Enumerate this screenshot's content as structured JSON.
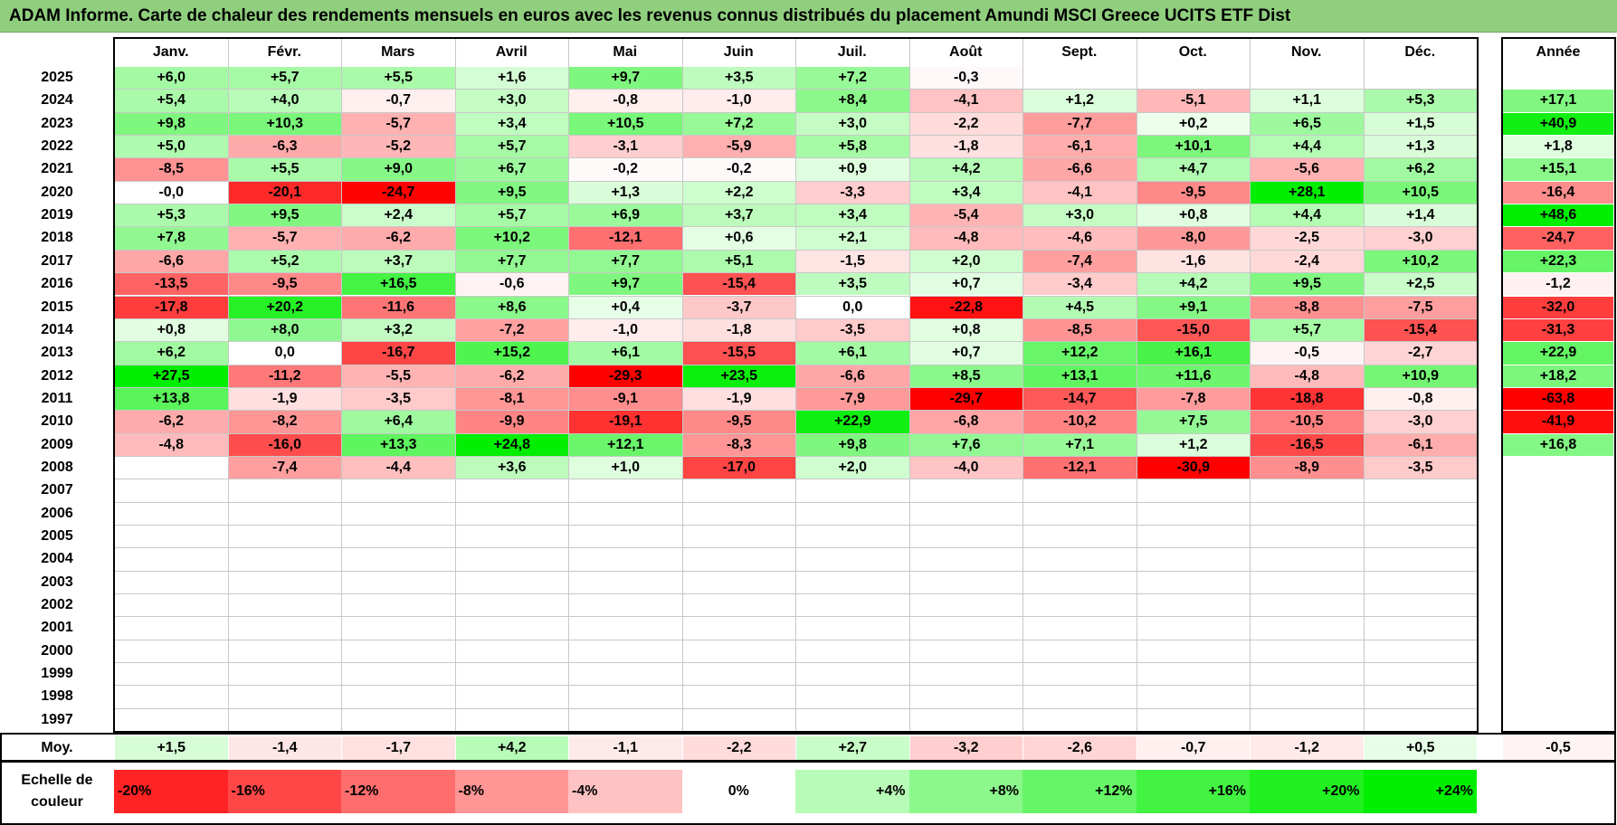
{
  "title": "ADAM Informe. Carte de chaleur des rendements mensuels en euros avec les revenus connus distribués du placement Amundi MSCI Greece UCITS ETF Dist",
  "chart_data": {
    "type": "heatmap",
    "months": [
      "Janv.",
      "Févr.",
      "Mars",
      "Avril",
      "Mai",
      "Juin",
      "Juil.",
      "Août",
      "Sept.",
      "Oct.",
      "Nov.",
      "Déc."
    ],
    "year_header": "Année",
    "rows": [
      {
        "year": "2025",
        "months": [
          "+6,0",
          "+5,7",
          "+5,5",
          "+1,6",
          "+9,7",
          "+3,5",
          "+7,2",
          "-0,3",
          "",
          "",
          "",
          ""
        ],
        "annual": ""
      },
      {
        "year": "2024",
        "months": [
          "+5,4",
          "+4,0",
          "-0,7",
          "+3,0",
          "-0,8",
          "-1,0",
          "+8,4",
          "-4,1",
          "+1,2",
          "-5,1",
          "+1,1",
          "+5,3"
        ],
        "annual": "+17,1"
      },
      {
        "year": "2023",
        "months": [
          "+9,8",
          "+10,3",
          "-5,7",
          "+3,4",
          "+10,5",
          "+7,2",
          "+3,0",
          "-2,2",
          "-7,7",
          "+0,2",
          "+6,5",
          "+1,5"
        ],
        "annual": "+40,9"
      },
      {
        "year": "2022",
        "months": [
          "+5,0",
          "-6,3",
          "-5,2",
          "+5,7",
          "-3,1",
          "-5,9",
          "+5,8",
          "-1,8",
          "-6,1",
          "+10,1",
          "+4,4",
          "+1,3"
        ],
        "annual": "+1,8"
      },
      {
        "year": "2021",
        "months": [
          "-8,5",
          "+5,5",
          "+9,0",
          "+6,7",
          "-0,2",
          "-0,2",
          "+0,9",
          "+4,2",
          "-6,6",
          "+4,7",
          "-5,6",
          "+6,2"
        ],
        "annual": "+15,1"
      },
      {
        "year": "2020",
        "months": [
          "-0,0",
          "-20,1",
          "-24,7",
          "+9,5",
          "+1,3",
          "+2,2",
          "-3,3",
          "+3,4",
          "-4,1",
          "-9,5",
          "+28,1",
          "+10,5"
        ],
        "annual": "-16,4"
      },
      {
        "year": "2019",
        "months": [
          "+5,3",
          "+9,5",
          "+2,4",
          "+5,7",
          "+6,9",
          "+3,7",
          "+3,4",
          "-5,4",
          "+3,0",
          "+0,8",
          "+4,4",
          "+1,4"
        ],
        "annual": "+48,6"
      },
      {
        "year": "2018",
        "months": [
          "+7,8",
          "-5,7",
          "-6,2",
          "+10,2",
          "-12,1",
          "+0,6",
          "+2,1",
          "-4,8",
          "-4,6",
          "-8,0",
          "-2,5",
          "-3,0"
        ],
        "annual": "-24,7"
      },
      {
        "year": "2017",
        "months": [
          "-6,6",
          "+5,2",
          "+3,7",
          "+7,7",
          "+7,7",
          "+5,1",
          "-1,5",
          "+2,0",
          "-7,4",
          "-1,6",
          "-2,4",
          "+10,2"
        ],
        "annual": "+22,3"
      },
      {
        "year": "2016",
        "months": [
          "-13,5",
          "-9,5",
          "+16,5",
          "-0,6",
          "+9,7",
          "-15,4",
          "+3,5",
          "+0,7",
          "-3,4",
          "+4,2",
          "+9,5",
          "+2,5"
        ],
        "annual": "-1,2"
      },
      {
        "year": "2015",
        "months": [
          "-17,8",
          "+20,2",
          "-11,6",
          "+8,6",
          "+0,4",
          "-3,7",
          "0,0",
          "-22,8",
          "+4,5",
          "+9,1",
          "-8,8",
          "-7,5"
        ],
        "annual": "-32,0"
      },
      {
        "year": "2014",
        "months": [
          "+0,8",
          "+8,0",
          "+3,2",
          "-7,2",
          "-1,0",
          "-1,8",
          "-3,5",
          "+0,8",
          "-8,5",
          "-15,0",
          "+5,7",
          "-15,4"
        ],
        "annual": "-31,3"
      },
      {
        "year": "2013",
        "months": [
          "+6,2",
          "0,0",
          "-16,7",
          "+15,2",
          "+6,1",
          "-15,5",
          "+6,1",
          "+0,7",
          "+12,2",
          "+16,1",
          "-0,5",
          "-2,7"
        ],
        "annual": "+22,9"
      },
      {
        "year": "2012",
        "months": [
          "+27,5",
          "-11,2",
          "-5,5",
          "-6,2",
          "-29,3",
          "+23,5",
          "-6,6",
          "+8,5",
          "+13,1",
          "+11,6",
          "-4,8",
          "+10,9"
        ],
        "annual": "+18,2"
      },
      {
        "year": "2011",
        "months": [
          "+13,8",
          "-1,9",
          "-3,5",
          "-8,1",
          "-9,1",
          "-1,9",
          "-7,9",
          "-29,7",
          "-14,7",
          "-7,8",
          "-18,8",
          "-0,8"
        ],
        "annual": "-63,8"
      },
      {
        "year": "2010",
        "months": [
          "-6,2",
          "-8,2",
          "+6,4",
          "-9,9",
          "-19,1",
          "-9,5",
          "+22,9",
          "-6,8",
          "-10,2",
          "+7,5",
          "-10,5",
          "-3,0"
        ],
        "annual": "-41,9"
      },
      {
        "year": "2009",
        "months": [
          "-4,8",
          "-16,0",
          "+13,3",
          "+24,8",
          "+12,1",
          "-8,3",
          "+9,8",
          "+7,6",
          "+7,1",
          "+1,2",
          "-16,5",
          "-6,1"
        ],
        "annual": "+16,8"
      },
      {
        "year": "2008",
        "months": [
          "",
          "-7,4",
          "-4,4",
          "+3,6",
          "+1,0",
          "-17,0",
          "+2,0",
          "-4,0",
          "-12,1",
          "-30,9",
          "-8,9",
          "-3,5"
        ],
        "annual": ""
      },
      {
        "year": "2007",
        "months": [
          "",
          "",
          "",
          "",
          "",
          "",
          "",
          "",
          "",
          "",
          "",
          ""
        ],
        "annual": ""
      },
      {
        "year": "2006",
        "months": [
          "",
          "",
          "",
          "",
          "",
          "",
          "",
          "",
          "",
          "",
          "",
          ""
        ],
        "annual": ""
      },
      {
        "year": "2005",
        "months": [
          "",
          "",
          "",
          "",
          "",
          "",
          "",
          "",
          "",
          "",
          "",
          ""
        ],
        "annual": ""
      },
      {
        "year": "2004",
        "months": [
          "",
          "",
          "",
          "",
          "",
          "",
          "",
          "",
          "",
          "",
          "",
          ""
        ],
        "annual": ""
      },
      {
        "year": "2003",
        "months": [
          "",
          "",
          "",
          "",
          "",
          "",
          "",
          "",
          "",
          "",
          "",
          ""
        ],
        "annual": ""
      },
      {
        "year": "2002",
        "months": [
          "",
          "",
          "",
          "",
          "",
          "",
          "",
          "",
          "",
          "",
          "",
          ""
        ],
        "annual": ""
      },
      {
        "year": "2001",
        "months": [
          "",
          "",
          "",
          "",
          "",
          "",
          "",
          "",
          "",
          "",
          "",
          ""
        ],
        "annual": ""
      },
      {
        "year": "2000",
        "months": [
          "",
          "",
          "",
          "",
          "",
          "",
          "",
          "",
          "",
          "",
          "",
          ""
        ],
        "annual": ""
      },
      {
        "year": "1999",
        "months": [
          "",
          "",
          "",
          "",
          "",
          "",
          "",
          "",
          "",
          "",
          "",
          ""
        ],
        "annual": ""
      },
      {
        "year": "1998",
        "months": [
          "",
          "",
          "",
          "",
          "",
          "",
          "",
          "",
          "",
          "",
          "",
          ""
        ],
        "annual": ""
      },
      {
        "year": "1997",
        "months": [
          "",
          "",
          "",
          "",
          "",
          "",
          "",
          "",
          "",
          "",
          "",
          ""
        ],
        "annual": ""
      }
    ],
    "average": {
      "label": "Moy.",
      "months": [
        "+1,5",
        "-1,4",
        "-1,7",
        "+4,2",
        "-1,1",
        "-2,2",
        "+2,7",
        "-3,2",
        "-2,6",
        "-0,7",
        "-1,2",
        "+0,5"
      ],
      "annual": "-0,5"
    },
    "color_scale": {
      "label": "Echelle de couleur",
      "stops": [
        "-20%",
        "-16%",
        "-12%",
        "-8%",
        "-4%",
        "0%",
        "+4%",
        "+8%",
        "+12%",
        "+16%",
        "+20%",
        "+24%"
      ],
      "negative_color": "#ff0000",
      "positive_color": "#00ee00",
      "neutral_color": "#ffffff"
    }
  }
}
